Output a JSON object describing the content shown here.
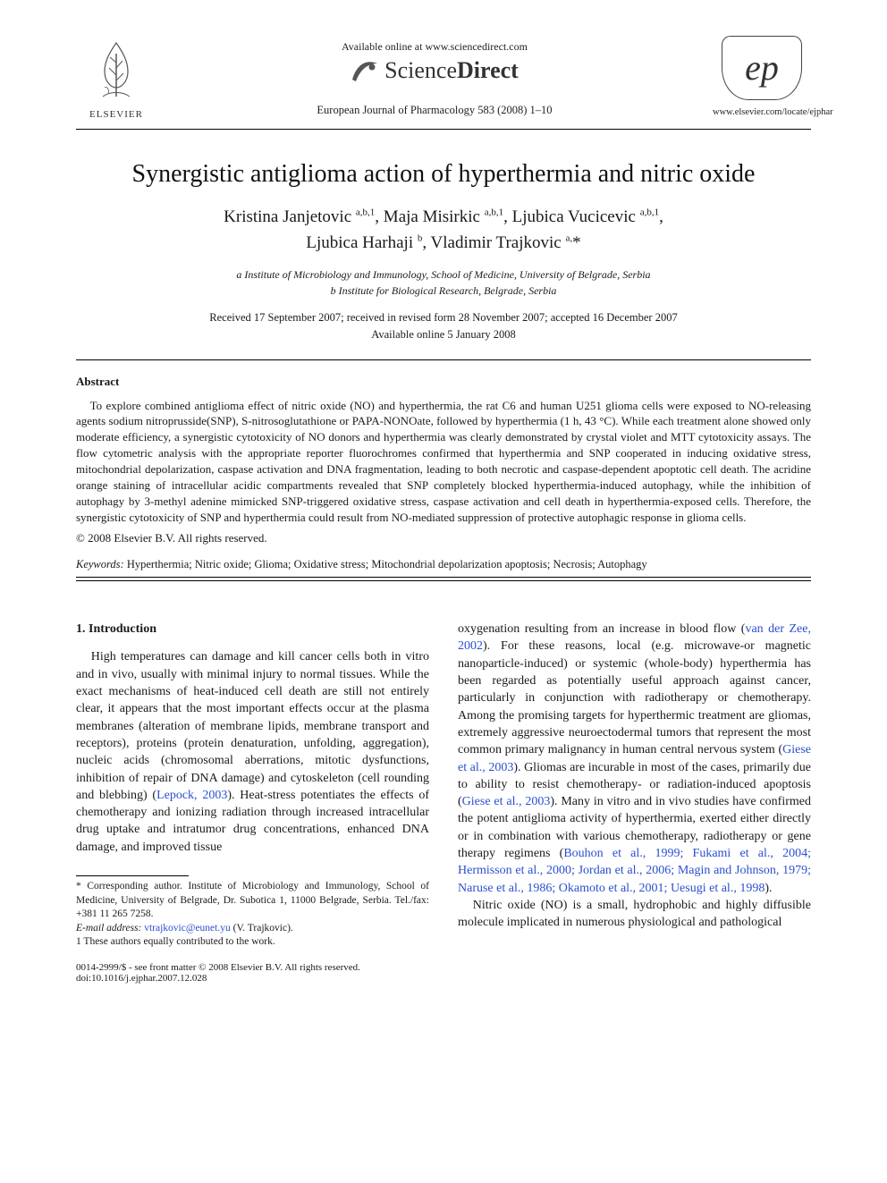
{
  "header": {
    "available_online": "Available online at www.sciencedirect.com",
    "sd_light": "Science",
    "sd_bold": "Direct",
    "journal_ref": "European Journal of Pharmacology 583 (2008) 1–10",
    "elsevier_label": "ELSEVIER",
    "ejp_e": "e",
    "ejp_p": "p",
    "locate": "www.elsevier.com/locate/ejphar"
  },
  "title": "Synergistic antiglioma action of hyperthermia and nitric oxide",
  "authors_html": "Kristina Janjetovic <sup>a,b,1</sup>, Maja Misirkic <sup>a,b,1</sup>, Ljubica Vucicevic <sup>a,b,1</sup>,<br>Ljubica Harhaji <sup>b</sup>, Vladimir Trajkovic <sup>a,</sup>*",
  "affiliations": {
    "a": "a Institute of Microbiology and Immunology, School of Medicine, University of Belgrade, Serbia",
    "b": "b Institute for Biological Research, Belgrade, Serbia"
  },
  "dates": {
    "line1": "Received 17 September 2007; received in revised form 28 November 2007; accepted 16 December 2007",
    "line2": "Available online 5 January 2008"
  },
  "abstract": {
    "heading": "Abstract",
    "body": "To explore combined antiglioma effect of nitric oxide (NO) and hyperthermia, the rat C6 and human U251 glioma cells were exposed to NO-releasing agents sodium nitroprusside(SNP), S-nitrosoglutathione or PAPA-NONOate, followed by hyperthermia (1 h, 43 °C). While each treatment alone showed only moderate efficiency, a synergistic cytotoxicity of NO donors and hyperthermia was clearly demonstrated by crystal violet and MTT cytotoxicity assays. The flow cytometric analysis with the appropriate reporter fluorochromes confirmed that hyperthermia and SNP cooperated in inducing oxidative stress, mitochondrial depolarization, caspase activation and DNA fragmentation, leading to both necrotic and caspase-dependent apoptotic cell death. The acridine orange staining of intracellular acidic compartments revealed that SNP completely blocked hyperthermia-induced autophagy, while the inhibition of autophagy by 3-methyl adenine mimicked SNP-triggered oxidative stress, caspase activation and cell death in hyperthermia-exposed cells. Therefore, the synergistic cytotoxicity of SNP and hyperthermia could result from NO-mediated suppression of protective autophagic response in glioma cells.",
    "copyright": "© 2008 Elsevier B.V. All rights reserved."
  },
  "keywords": {
    "label": "Keywords:",
    "text": " Hyperthermia; Nitric oxide; Glioma; Oxidative stress; Mitochondrial depolarization apoptosis; Necrosis; Autophagy"
  },
  "section1": {
    "heading": "1. Introduction",
    "col1_pre": "High temperatures can damage and kill cancer cells both in vitro and in vivo, usually with minimal injury to normal tissues. While the exact mechanisms of heat-induced cell death are still not entirely clear, it appears that the most important effects occur at the plasma membranes (alteration of membrane lipids, membrane transport and receptors), proteins (protein denaturation, unfolding, aggregation), nucleic acids (chromosomal aberrations, mitotic dysfunctions, inhibition of repair of DNA damage) and cytoskeleton (cell rounding and blebbing) (",
    "col1_cite1": "Lepock, 2003",
    "col1_mid": "). Heat-stress potentiates the effects of chemotherapy and ionizing radiation through increased intracellular drug uptake and intratumor drug concentrations, enhanced DNA damage, and improved tissue",
    "col2_pre": "oxygenation resulting from an increase in blood flow (",
    "col2_cite1": "van der Zee, 2002",
    "col2_mid1": "). For these reasons, local (e.g. microwave-or magnetic nanoparticle-induced) or systemic (whole-body) hyperthermia has been regarded as potentially useful approach against cancer, particularly in conjunction with radiotherapy or chemotherapy. Among the promising targets for hyperthermic treatment are gliomas, extremely aggressive neuroectodermal tumors that represent the most common primary malignancy in human central nervous system (",
    "col2_cite2": "Giese et al., 2003",
    "col2_mid2": "). Gliomas are incurable in most of the cases, primarily due to ability to resist chemotherapy- or radiation-induced apoptosis (",
    "col2_cite3": "Giese et al., 2003",
    "col2_mid3": "). Many in vitro and in vivo studies have confirmed the potent antiglioma activity of hyperthermia, exerted either directly or in combination with various chemotherapy, radiotherapy or gene therapy regimens (",
    "col2_cite4": "Bouhon et al., 1999; Fukami et al., 2004; Hermisson et al., 2000; Jordan et al., 2006; Magin and Johnson, 1979; Naruse et al., 1986; Okamoto et al., 2001; Uesugi et al., 1998",
    "col2_mid4": ").",
    "col2_p2": "Nitric oxide (NO) is a small, hydrophobic and highly diffusible molecule implicated in numerous physiological and pathological"
  },
  "footnotes": {
    "corr": "* Corresponding author. Institute of Microbiology and Immunology, School of Medicine, University of Belgrade, Dr. Subotica 1, 11000 Belgrade, Serbia. Tel./fax: +381 11 265 7258.",
    "email_label": "E-mail address: ",
    "email": "vtrajkovic@eunet.yu",
    "email_post": " (V. Trajkovic).",
    "equal": "1 These authors equally contributed to the work."
  },
  "footer": {
    "left1": "0014-2999/$ - see front matter © 2008 Elsevier B.V. All rights reserved.",
    "left2": "doi:10.1016/j.ejphar.2007.12.028"
  },
  "colors": {
    "citation": "#2a4fd0",
    "text": "#1a1a1a",
    "background": "#ffffff"
  }
}
